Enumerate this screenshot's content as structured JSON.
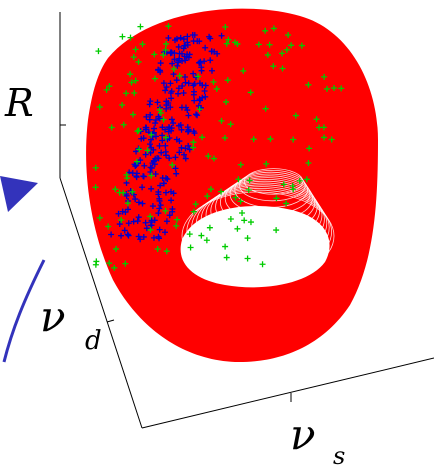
{
  "axes": {
    "z_label": "R",
    "y_label": "ν",
    "y_label_subscript": "d",
    "x_label": "ν",
    "x_label_subscript": "s"
  },
  "colors": {
    "surface": "#ff0000",
    "inner_hole": "#ffffff",
    "marker_a": "#0000cc",
    "marker_b": "#00cc00",
    "arrow": "#3333bb",
    "axis": "#000000"
  },
  "markers": {
    "shape": "plus"
  }
}
